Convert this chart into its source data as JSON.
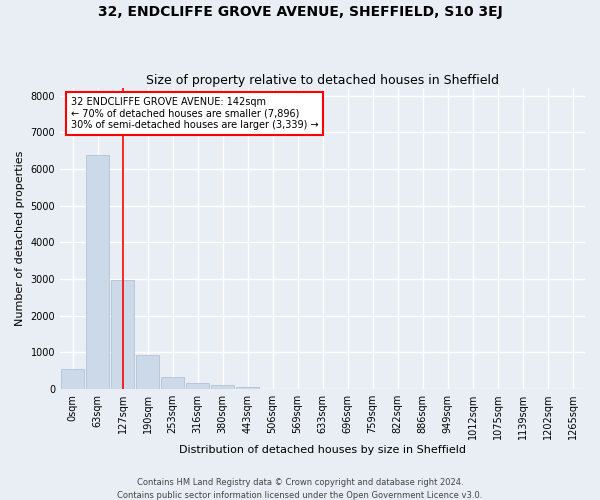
{
  "title": "32, ENDCLIFFE GROVE AVENUE, SHEFFIELD, S10 3EJ",
  "subtitle": "Size of property relative to detached houses in Sheffield",
  "xlabel": "Distribution of detached houses by size in Sheffield",
  "ylabel": "Number of detached properties",
  "footer_line1": "Contains HM Land Registry data © Crown copyright and database right 2024.",
  "footer_line2": "Contains public sector information licensed under the Open Government Licence v3.0.",
  "bar_labels": [
    "0sqm",
    "63sqm",
    "127sqm",
    "190sqm",
    "253sqm",
    "316sqm",
    "380sqm",
    "443sqm",
    "506sqm",
    "569sqm",
    "633sqm",
    "696sqm",
    "759sqm",
    "822sqm",
    "886sqm",
    "949sqm",
    "1012sqm",
    "1075sqm",
    "1139sqm",
    "1202sqm",
    "1265sqm"
  ],
  "bar_values": [
    550,
    6380,
    2960,
    940,
    340,
    160,
    100,
    70,
    0,
    0,
    0,
    0,
    0,
    0,
    0,
    0,
    0,
    0,
    0,
    0,
    0
  ],
  "bar_color": "#ccd9e8",
  "bar_edge_color": "#aabbd0",
  "vline_x": 2,
  "vline_color": "red",
  "annotation_text": "32 ENDCLIFFE GROVE AVENUE: 142sqm\n← 70% of detached houses are smaller (7,896)\n30% of semi-detached houses are larger (3,339) →",
  "annotation_box_color": "white",
  "annotation_box_edge_color": "red",
  "ylim": [
    0,
    8200
  ],
  "yticks": [
    0,
    1000,
    2000,
    3000,
    4000,
    5000,
    6000,
    7000,
    8000
  ],
  "bg_color": "#e8eef4",
  "plot_bg_color": "#e8eef4",
  "grid_color": "white",
  "title_fontsize": 10,
  "subtitle_fontsize": 9,
  "axis_label_fontsize": 8,
  "tick_fontsize": 7,
  "annotation_fontsize": 7,
  "footer_fontsize": 6
}
